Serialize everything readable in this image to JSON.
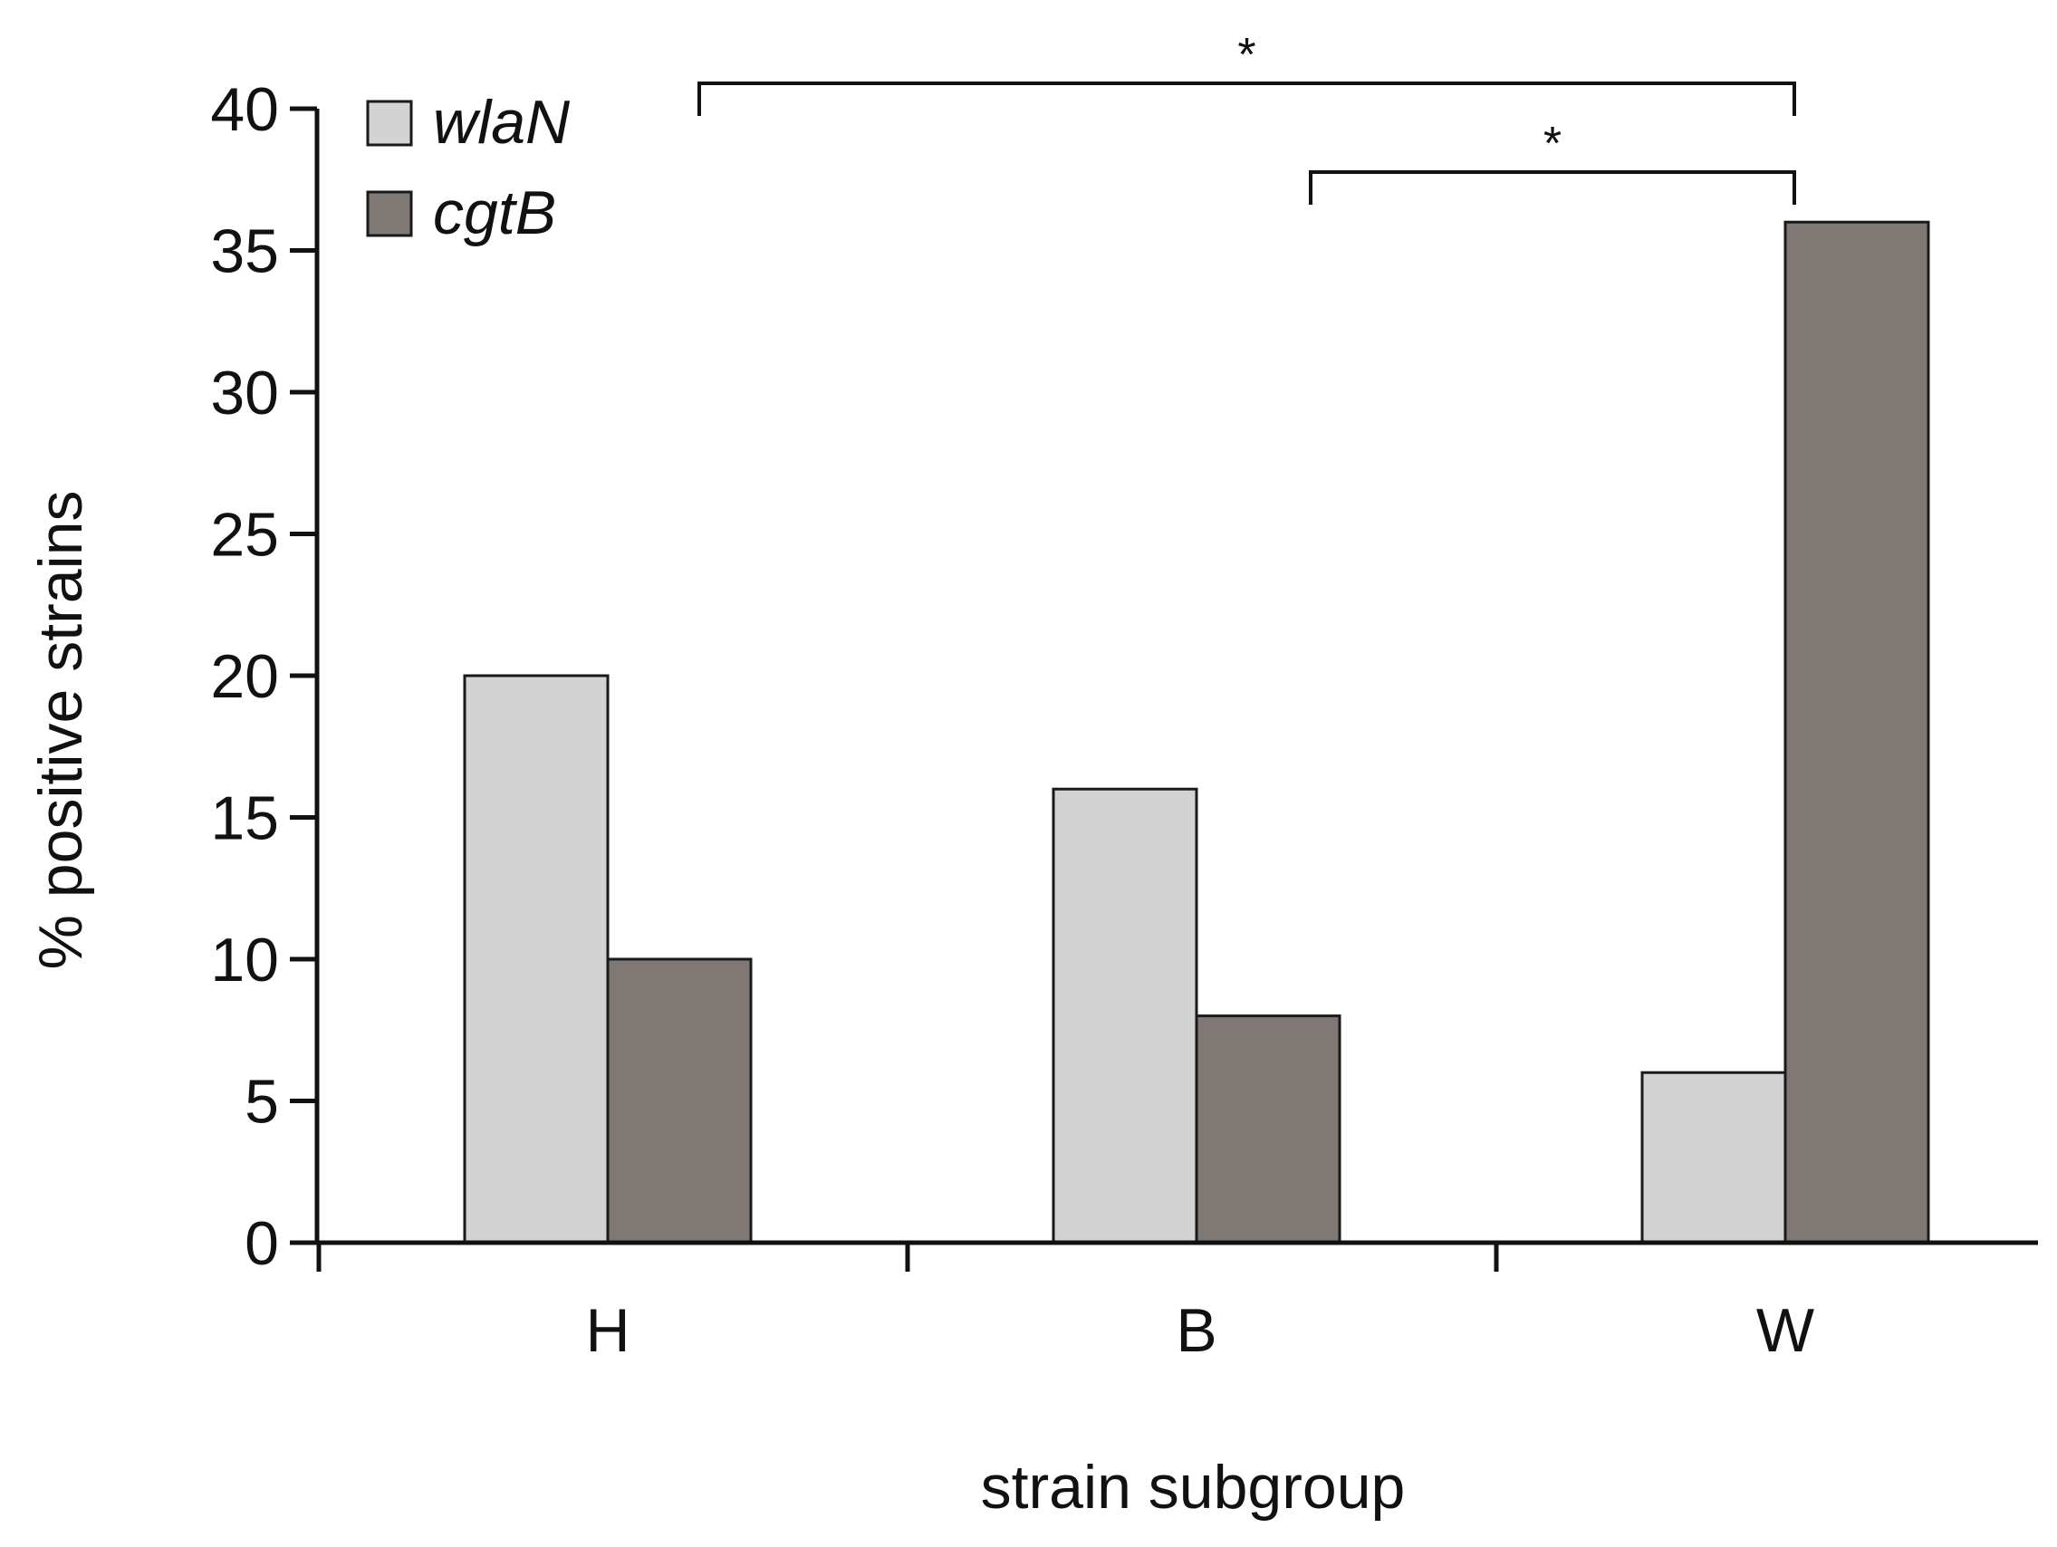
{
  "chart_data": {
    "type": "bar",
    "title": "",
    "xlabel": "strain subgroup",
    "ylabel": "% positive strains",
    "categories": [
      "H",
      "B",
      "W"
    ],
    "series": [
      {
        "name": "wlaN",
        "values": [
          20,
          16,
          6
        ],
        "color": "#d3d3d3"
      },
      {
        "name": "cgtB",
        "values": [
          10,
          8,
          36
        ],
        "color": "#807875"
      }
    ],
    "ylim": [
      0,
      40
    ],
    "yticks": [
      0,
      5,
      10,
      15,
      20,
      25,
      30,
      35,
      40
    ],
    "legend_position": "top-left",
    "grid": false,
    "annotations": [
      {
        "text": "*",
        "type": "significance-bracket",
        "from": "H",
        "to": "W"
      },
      {
        "text": "*",
        "type": "significance-bracket",
        "from": "B",
        "to": "W"
      }
    ]
  }
}
